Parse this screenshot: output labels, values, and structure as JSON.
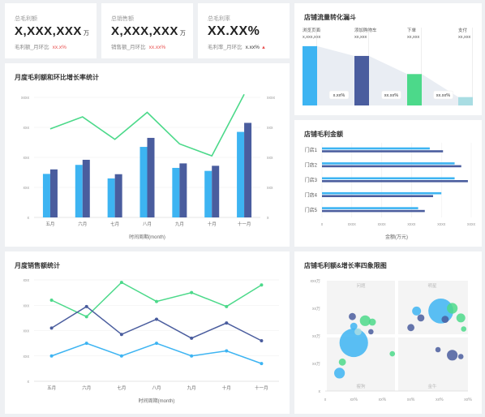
{
  "kpis": [
    {
      "label": "总毛利额",
      "value": "X,XXX,XXX",
      "unit": "万",
      "sub_label": "毛利额_月环比",
      "sub_value": "xx.x%",
      "sub_color": "red"
    },
    {
      "label": "总销售额",
      "value": "X,XXX,XXX",
      "unit": "万",
      "sub_label": "销售额_月环比",
      "sub_value": "xx.xx%",
      "sub_color": "red"
    },
    {
      "label": "总毛利率",
      "value": "XX.XX%",
      "unit": "",
      "sub_label": "毛利率_月环比",
      "sub_value": "x.xx%",
      "sub_color": "dark"
    }
  ],
  "funnel": {
    "title": "店铺流量转化漏斗",
    "stages": [
      {
        "label": "浏览页面",
        "value": "x,xxx,xxx",
        "color": "#3db4f2",
        "level": 0.85
      },
      {
        "label": "添加购物车",
        "value": "xx,xxx",
        "color": "#4a5d9e",
        "level": 0.71
      },
      {
        "label": "下单",
        "value": "xx,xxx",
        "color": "#4cd98a",
        "level": 0.45
      },
      {
        "label": "支付",
        "value": "xx,xxx",
        "color": "#a9dde3",
        "level": 0.12
      }
    ],
    "rates": [
      "x.xx%",
      "xx.xx%",
      "xx.xx%"
    ]
  },
  "chart_bar_line": {
    "title": "月度毛利额和环比增长率统计",
    "chart_data": {
      "type": "bar",
      "categories": [
        "五月",
        "六月",
        "七月",
        "八月",
        "九月",
        "十月",
        "十一月"
      ],
      "series": [
        {
          "values": [
            1.45,
            1.75,
            1.3,
            2.35,
            1.65,
            1.55,
            2.85
          ],
          "color": "#3db4f2"
        },
        {
          "values": [
            1.6,
            1.92,
            1.44,
            2.65,
            1.8,
            1.72,
            3.15
          ],
          "color": "#4a5d9e"
        }
      ],
      "line": {
        "values": [
          2.95,
          3.35,
          2.6,
          3.5,
          2.45,
          2.05,
          4.1
        ],
        "color": "#4cd98a"
      },
      "ylim": [
        0,
        4
      ],
      "y_ticks": [
        "x",
        "xxx",
        "xxx",
        "xxx",
        "xxxx"
      ],
      "y2_ticks": [
        "x",
        "xxx",
        "xxx",
        "xxx",
        "xxxx"
      ],
      "xlabel": "时间周期(month)"
    }
  },
  "chart_hbar": {
    "title": "店铺毛利金额",
    "chart_data": {
      "type": "bar",
      "categories": [
        "门店1",
        "门店2",
        "门店3",
        "门店4",
        "门店5"
      ],
      "series": [
        {
          "values": [
            3.25,
            4.0,
            4.0,
            3.6,
            2.9
          ],
          "color": "#3db4f2"
        },
        {
          "values": [
            3.65,
            4.2,
            4.4,
            3.35,
            3.1
          ],
          "color": "#4a5d9e"
        }
      ],
      "xlim": [
        0,
        4.5
      ],
      "x_ticks": [
        "x",
        "xxxx",
        "xxxx",
        "xxxx",
        "xxxx",
        "xxxx"
      ],
      "xlabel": "金额(万元)"
    }
  },
  "chart_line": {
    "title": "月度销售额统计",
    "chart_data": {
      "type": "line",
      "categories": [
        "五月",
        "六月",
        "七月",
        "八月",
        "九月",
        "十月",
        "十一月"
      ],
      "series": [
        {
          "values": [
            3.2,
            2.55,
            3.9,
            3.15,
            3.5,
            2.95,
            3.8
          ],
          "color": "#4cd98a"
        },
        {
          "values": [
            2.1,
            2.95,
            1.85,
            2.45,
            1.7,
            2.3,
            1.6
          ],
          "color": "#4a5d9e"
        },
        {
          "values": [
            1.0,
            1.5,
            1.0,
            1.5,
            1.0,
            1.2,
            0.7
          ],
          "color": "#3db4f2"
        }
      ],
      "ylim": [
        0,
        4
      ],
      "y_ticks": [
        "x",
        "xxx",
        "xxx",
        "xxx",
        "xxx"
      ],
      "xlabel": "时间周期(month)"
    }
  },
  "chart_scatter": {
    "title": "店铺毛利额&增长率四象限图",
    "chart_data": {
      "type": "scatter",
      "x_ticks": [
        "x",
        "xx%",
        "xx%",
        "xx%",
        "xx%",
        "xx%"
      ],
      "y_ticks": [
        "x",
        "xx万",
        "xx万",
        "xx万",
        "xxx万"
      ],
      "quadrants": [
        "问题",
        "明星",
        "瘦狗",
        "金牛"
      ],
      "xlim": [
        0,
        5
      ],
      "ylim": [
        0,
        4
      ],
      "divider": {
        "x": 2.5,
        "y": 2.0
      },
      "points": [
        {
          "x": 0.5,
          "y": 0.65,
          "r": 3,
          "color": "#3db4f2"
        },
        {
          "x": 0.6,
          "y": 1.05,
          "r": 2,
          "color": "#4cd98a"
        },
        {
          "x": 1.0,
          "y": 1.75,
          "r": 8,
          "color": "#3db4f2"
        },
        {
          "x": 0.95,
          "y": 2.7,
          "r": 2,
          "color": "#4a5d9e"
        },
        {
          "x": 1.4,
          "y": 2.55,
          "r": 3,
          "color": "#4cd98a"
        },
        {
          "x": 1.0,
          "y": 2.35,
          "r": 2,
          "color": "#3db4f2"
        },
        {
          "x": 1.15,
          "y": 2.15,
          "r": 2,
          "color": "#a9dde3"
        },
        {
          "x": 1.65,
          "y": 2.5,
          "r": 2,
          "color": "#4cd98a"
        },
        {
          "x": 1.6,
          "y": 2.15,
          "r": 1.5,
          "color": "#4a5d9e"
        },
        {
          "x": 2.35,
          "y": 1.35,
          "r": 1.5,
          "color": "#4cd98a"
        },
        {
          "x": 3.2,
          "y": 2.9,
          "r": 2.5,
          "color": "#3db4f2"
        },
        {
          "x": 3.0,
          "y": 2.3,
          "r": 2,
          "color": "#4a5d9e"
        },
        {
          "x": 3.35,
          "y": 2.65,
          "r": 2,
          "color": "#4a5d9e"
        },
        {
          "x": 4.05,
          "y": 2.9,
          "r": 7,
          "color": "#3db4f2"
        },
        {
          "x": 4.45,
          "y": 3.0,
          "r": 3,
          "color": "#4cd98a"
        },
        {
          "x": 4.2,
          "y": 2.6,
          "r": 2,
          "color": "#4a5d9e"
        },
        {
          "x": 4.75,
          "y": 2.65,
          "r": 2.5,
          "color": "#4cd98a"
        },
        {
          "x": 4.85,
          "y": 2.25,
          "r": 1.5,
          "color": "#4cd98a"
        },
        {
          "x": 3.95,
          "y": 1.5,
          "r": 1.5,
          "color": "#4a5d9e"
        },
        {
          "x": 4.45,
          "y": 1.3,
          "r": 3,
          "color": "#4a5d9e"
        },
        {
          "x": 4.75,
          "y": 1.25,
          "r": 1.5,
          "color": "#4a5d9e"
        }
      ]
    }
  }
}
